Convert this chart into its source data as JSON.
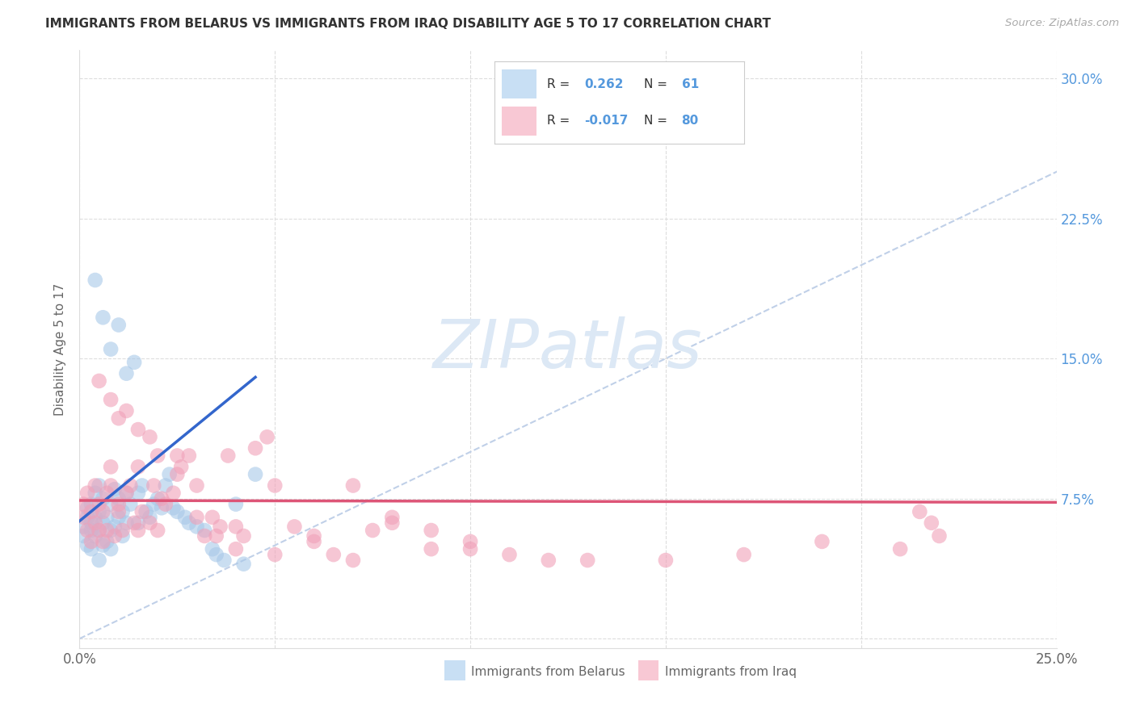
{
  "title": "IMMIGRANTS FROM BELARUS VS IMMIGRANTS FROM IRAQ DISABILITY AGE 5 TO 17 CORRELATION CHART",
  "source": "Source: ZipAtlas.com",
  "ylabel": "Disability Age 5 to 17",
  "xlim": [
    0.0,
    0.25
  ],
  "ylim": [
    -0.005,
    0.315
  ],
  "x_tick_vals": [
    0.0,
    0.05,
    0.1,
    0.15,
    0.2,
    0.25
  ],
  "x_tick_labels": [
    "0.0%",
    "",
    "",
    "",
    "",
    "25.0%"
  ],
  "y_tick_vals": [
    0.0,
    0.075,
    0.15,
    0.225,
    0.3
  ],
  "y_tick_labels_right": [
    "",
    "7.5%",
    "15.0%",
    "22.5%",
    "30.0%"
  ],
  "r_belarus": "0.262",
  "n_belarus": "61",
  "r_iraq": "-0.017",
  "n_iraq": "80",
  "scatter_color_belarus": "#a8c8e8",
  "scatter_color_iraq": "#f0a0b8",
  "line_color_belarus": "#3366cc",
  "line_color_iraq": "#dd5577",
  "legend_fill_belarus": "#c8dff4",
  "legend_fill_iraq": "#f8c8d4",
  "diag_color": "#c0d0e8",
  "grid_color": "#dddddd",
  "right_tick_color": "#5599dd",
  "watermark_color": "#dce8f5",
  "background": "#ffffff",
  "title_color": "#333333",
  "label_color": "#666666",
  "belarus_x": [
    0.001,
    0.001,
    0.002,
    0.002,
    0.002,
    0.003,
    0.003,
    0.003,
    0.003,
    0.004,
    0.004,
    0.004,
    0.005,
    0.005,
    0.005,
    0.005,
    0.006,
    0.006,
    0.006,
    0.007,
    0.007,
    0.008,
    0.008,
    0.008,
    0.009,
    0.009,
    0.01,
    0.01,
    0.011,
    0.011,
    0.012,
    0.012,
    0.013,
    0.014,
    0.015,
    0.015,
    0.016,
    0.017,
    0.018,
    0.019,
    0.02,
    0.021,
    0.022,
    0.023,
    0.024,
    0.025,
    0.027,
    0.028,
    0.03,
    0.032,
    0.034,
    0.035,
    0.037,
    0.04,
    0.042,
    0.045,
    0.004,
    0.006,
    0.008,
    0.01,
    0.012
  ],
  "belarus_y": [
    0.06,
    0.055,
    0.065,
    0.05,
    0.07,
    0.048,
    0.058,
    0.072,
    0.062,
    0.065,
    0.078,
    0.055,
    0.082,
    0.058,
    0.068,
    0.042,
    0.062,
    0.075,
    0.05,
    0.052,
    0.065,
    0.058,
    0.072,
    0.048,
    0.08,
    0.06,
    0.065,
    0.075,
    0.068,
    0.055,
    0.078,
    0.062,
    0.072,
    0.148,
    0.062,
    0.078,
    0.082,
    0.068,
    0.065,
    0.072,
    0.075,
    0.07,
    0.082,
    0.088,
    0.07,
    0.068,
    0.065,
    0.062,
    0.06,
    0.058,
    0.048,
    0.045,
    0.042,
    0.072,
    0.04,
    0.088,
    0.192,
    0.172,
    0.155,
    0.168,
    0.142
  ],
  "iraq_x": [
    0.001,
    0.001,
    0.002,
    0.002,
    0.003,
    0.003,
    0.004,
    0.004,
    0.005,
    0.005,
    0.006,
    0.006,
    0.007,
    0.007,
    0.008,
    0.008,
    0.009,
    0.01,
    0.01,
    0.011,
    0.012,
    0.013,
    0.014,
    0.015,
    0.015,
    0.016,
    0.018,
    0.019,
    0.02,
    0.021,
    0.022,
    0.024,
    0.025,
    0.026,
    0.028,
    0.03,
    0.032,
    0.034,
    0.036,
    0.038,
    0.04,
    0.042,
    0.045,
    0.048,
    0.05,
    0.055,
    0.06,
    0.065,
    0.07,
    0.075,
    0.08,
    0.09,
    0.1,
    0.11,
    0.12,
    0.005,
    0.008,
    0.01,
    0.012,
    0.015,
    0.018,
    0.02,
    0.025,
    0.03,
    0.035,
    0.04,
    0.05,
    0.06,
    0.07,
    0.08,
    0.09,
    0.1,
    0.13,
    0.15,
    0.17,
    0.19,
    0.21,
    0.215,
    0.218,
    0.22
  ],
  "iraq_y": [
    0.065,
    0.072,
    0.058,
    0.078,
    0.052,
    0.068,
    0.062,
    0.082,
    0.058,
    0.072,
    0.052,
    0.068,
    0.078,
    0.058,
    0.082,
    0.092,
    0.055,
    0.068,
    0.072,
    0.058,
    0.078,
    0.082,
    0.062,
    0.092,
    0.058,
    0.068,
    0.062,
    0.082,
    0.058,
    0.075,
    0.072,
    0.078,
    0.098,
    0.092,
    0.098,
    0.065,
    0.055,
    0.065,
    0.06,
    0.098,
    0.06,
    0.055,
    0.102,
    0.108,
    0.082,
    0.06,
    0.055,
    0.045,
    0.042,
    0.058,
    0.062,
    0.048,
    0.052,
    0.045,
    0.042,
    0.138,
    0.128,
    0.118,
    0.122,
    0.112,
    0.108,
    0.098,
    0.088,
    0.082,
    0.055,
    0.048,
    0.045,
    0.052,
    0.082,
    0.065,
    0.058,
    0.048,
    0.042,
    0.042,
    0.045,
    0.052,
    0.048,
    0.068,
    0.062,
    0.055
  ]
}
